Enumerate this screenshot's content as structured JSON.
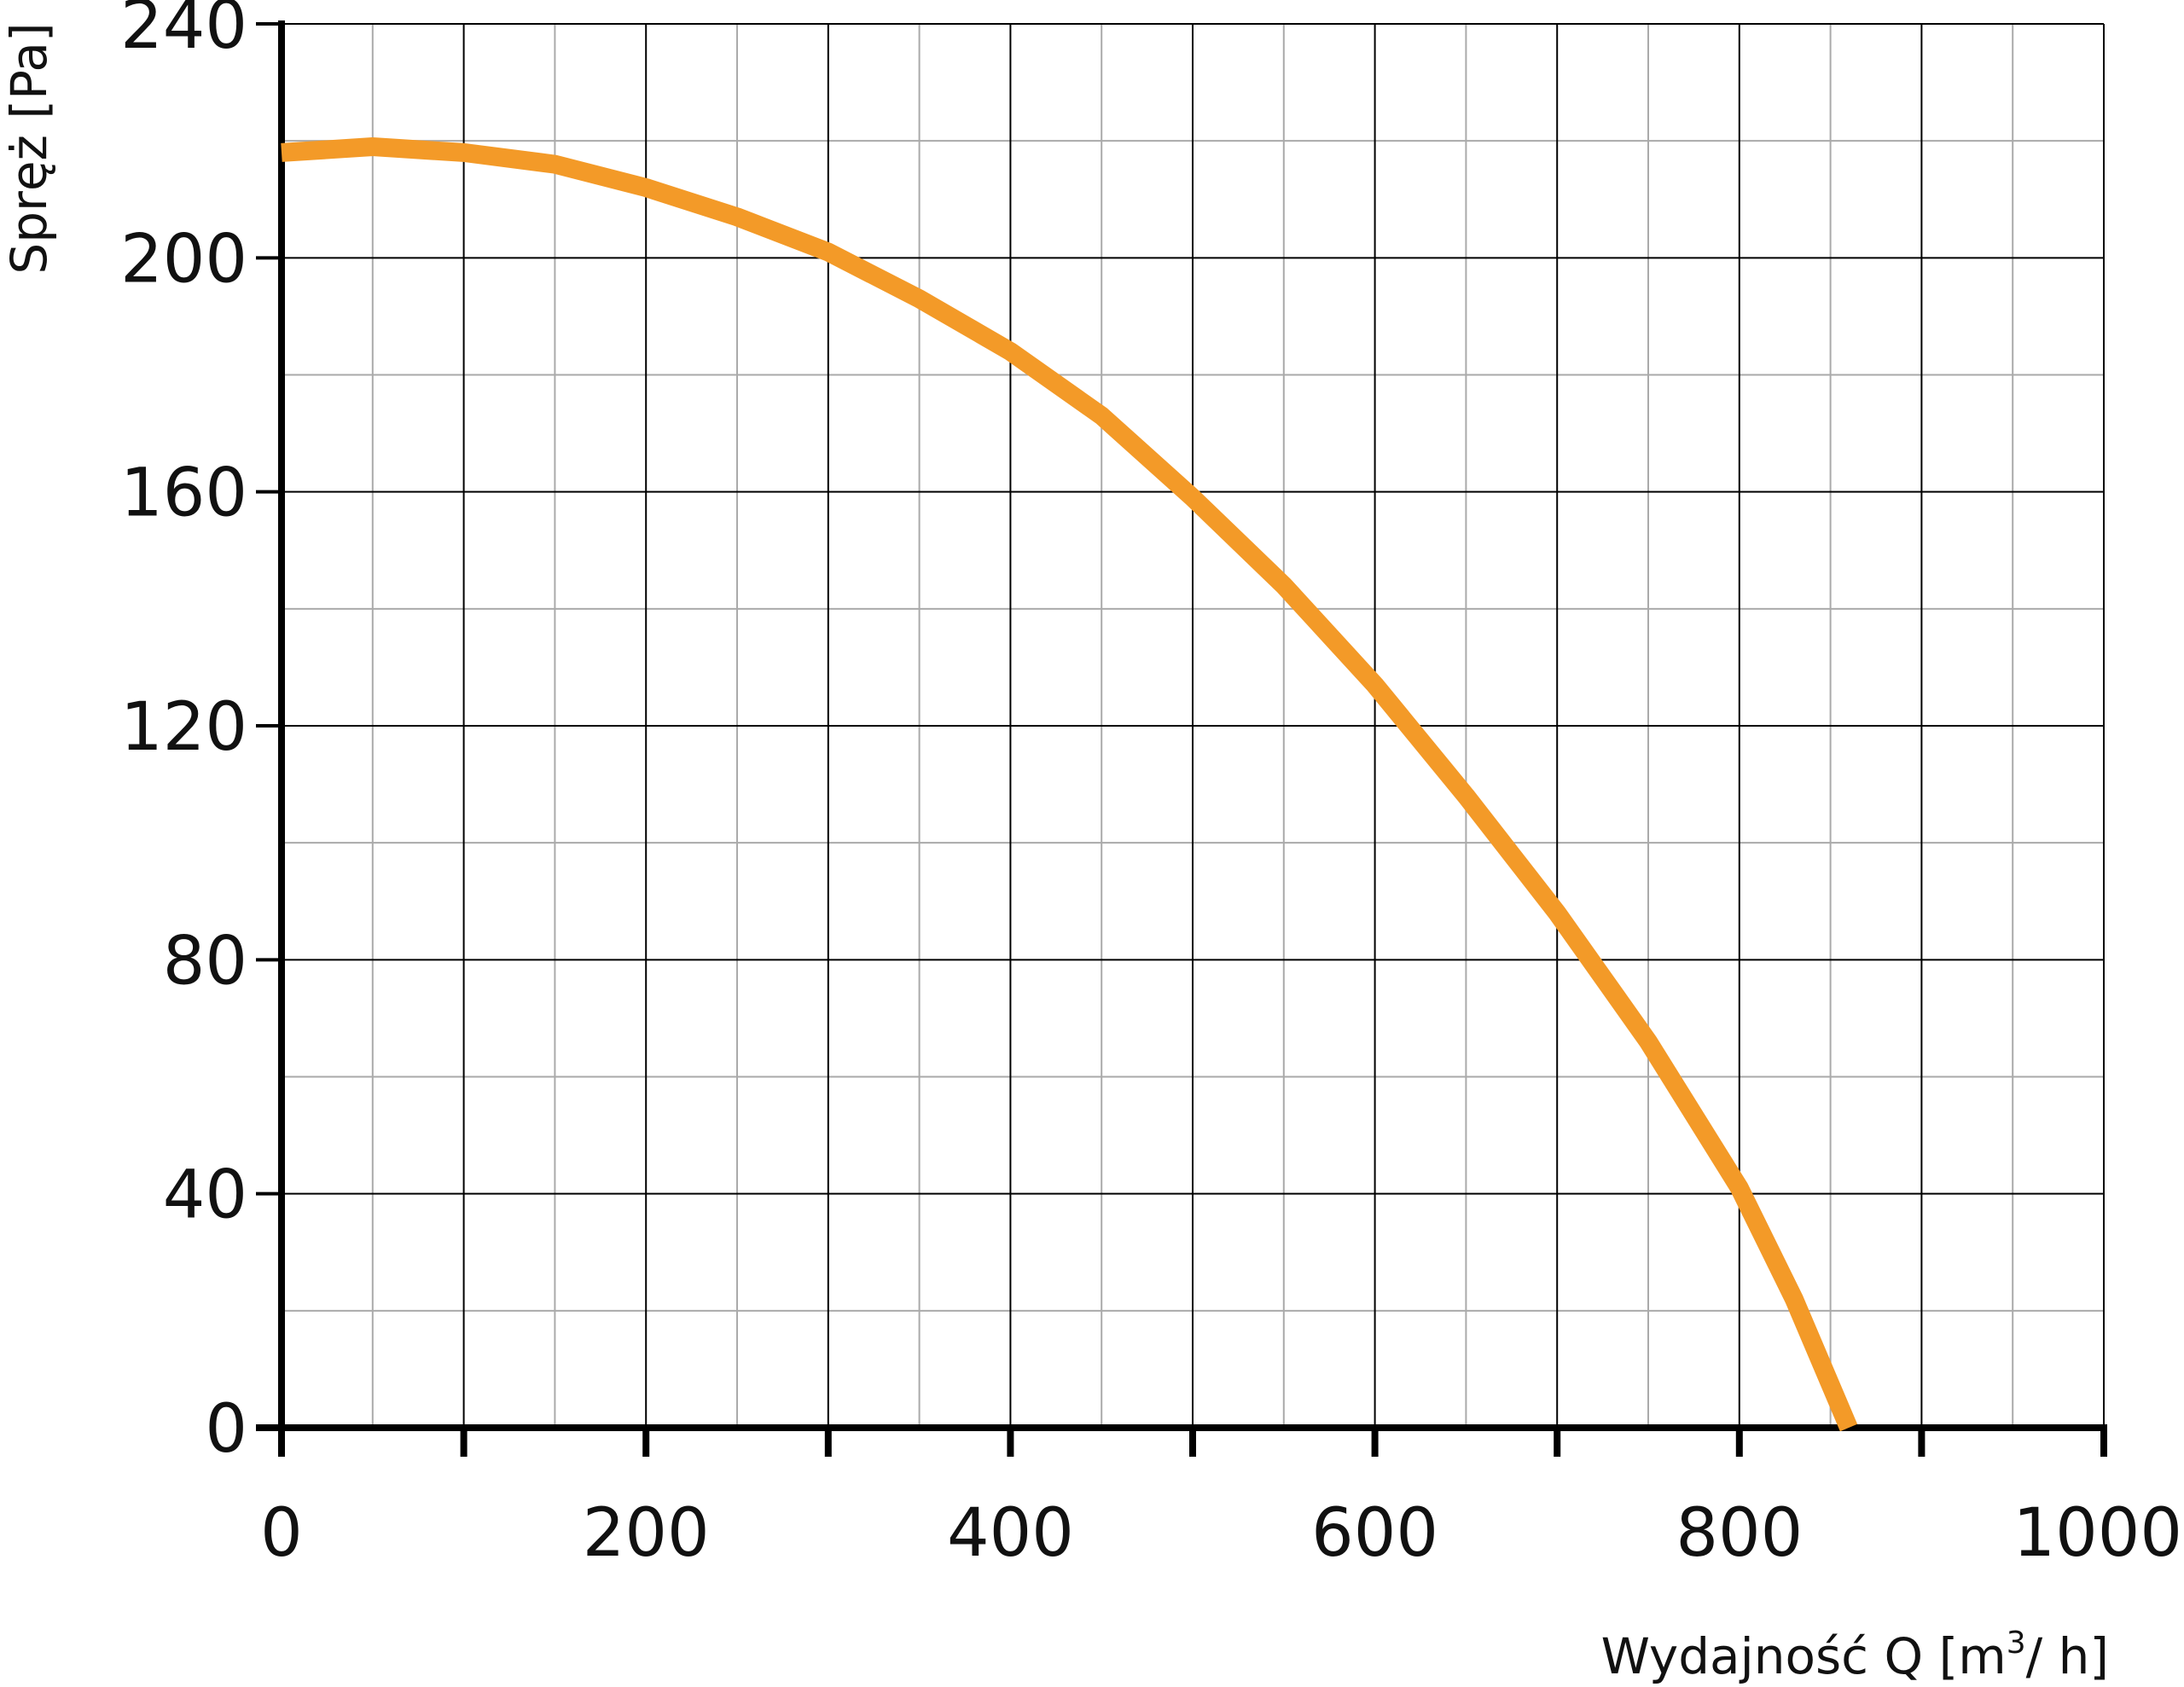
{
  "chart_data": {
    "type": "line",
    "title": "",
    "xlabel": "Wydajność Q [m³/ h]",
    "xlabel_parts": {
      "before": "Wydajność Q [m",
      "sup": "3",
      "after": "/ h]"
    },
    "ylabel": "Spręż [Pa]",
    "xlim": [
      0,
      1000
    ],
    "ylim": [
      0,
      240
    ],
    "x_ticks": [
      0,
      200,
      400,
      600,
      800,
      1000
    ],
    "y_ticks": [
      0,
      40,
      80,
      120,
      160,
      200,
      240
    ],
    "x_minor_step": 50,
    "y_minor_step": 20,
    "grid": true,
    "colors": {
      "curve": "#f39a28",
      "axis": "#000000",
      "major_grid": "#000000",
      "minor_grid": "#aaaaaa"
    },
    "series": [
      {
        "color": "#f39a28",
        "x": [
          0,
          50,
          100,
          150,
          200,
          250,
          300,
          350,
          400,
          450,
          500,
          550,
          600,
          650,
          700,
          750,
          800,
          830,
          860
        ],
        "y": [
          218,
          219,
          218,
          216,
          212,
          207,
          201,
          193,
          184,
          173,
          159,
          144,
          127,
          108,
          88,
          66,
          41,
          22,
          0
        ]
      }
    ]
  }
}
